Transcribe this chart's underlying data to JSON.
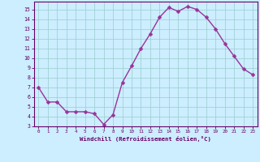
{
  "xlabel": "Windchill (Refroidissement éolien,°C)",
  "ylabel": "",
  "x_values": [
    0,
    1,
    2,
    3,
    4,
    5,
    6,
    7,
    8,
    9,
    10,
    11,
    12,
    13,
    14,
    15,
    16,
    17,
    18,
    19,
    20,
    21,
    22,
    23
  ],
  "y_values": [
    7.0,
    5.5,
    5.5,
    4.5,
    4.5,
    4.5,
    4.3,
    3.2,
    4.2,
    7.5,
    9.2,
    11.0,
    12.5,
    14.2,
    15.2,
    14.8,
    15.3,
    15.0,
    14.2,
    13.0,
    11.5,
    10.2,
    8.9,
    8.3
  ],
  "line_color": "#993399",
  "marker_color": "#993399",
  "background_color": "#cceeff",
  "grid_color": "#99cccc",
  "ylim": [
    3,
    15.8
  ],
  "xlim": [
    -0.5,
    23.5
  ],
  "yticks": [
    3,
    4,
    5,
    6,
    7,
    8,
    9,
    10,
    11,
    12,
    13,
    14,
    15
  ],
  "xticks": [
    0,
    1,
    2,
    3,
    4,
    5,
    6,
    7,
    8,
    9,
    10,
    11,
    12,
    13,
    14,
    15,
    16,
    17,
    18,
    19,
    20,
    21,
    22,
    23
  ],
  "tick_color": "#660066",
  "label_color": "#660066",
  "spine_color": "#660066",
  "marker_size": 2.5,
  "line_width": 1.0,
  "tick_fontsize": 4.2,
  "xlabel_fontsize": 5.2
}
